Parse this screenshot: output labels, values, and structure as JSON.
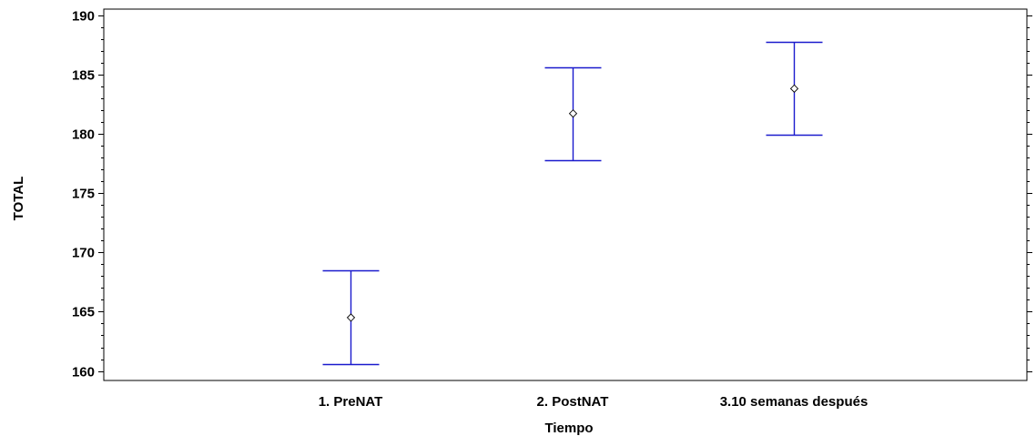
{
  "chart_data": {
    "type": "scatter",
    "subtype": "means-plot-with-intervals",
    "xlabel": "Tiempo",
    "ylabel": "TOTAL",
    "categories": [
      "1. PreNAT",
      "2. PostNAT",
      "3.10 semanas después"
    ],
    "means": [
      164.5,
      181.7,
      183.8
    ],
    "lower": [
      160.6,
      177.8,
      179.9
    ],
    "upper": [
      168.5,
      185.6,
      187.7
    ],
    "ylim": [
      159.2,
      190.5
    ],
    "yticks": [
      160,
      165,
      170,
      175,
      180,
      185,
      190
    ],
    "ytick_labels": [
      "160",
      "165",
      "170",
      "175",
      "180",
      "185",
      "190"
    ],
    "grid": false,
    "colors": {
      "interval": "#1a1acd",
      "marker": "#000000",
      "axes": "#000000"
    }
  }
}
